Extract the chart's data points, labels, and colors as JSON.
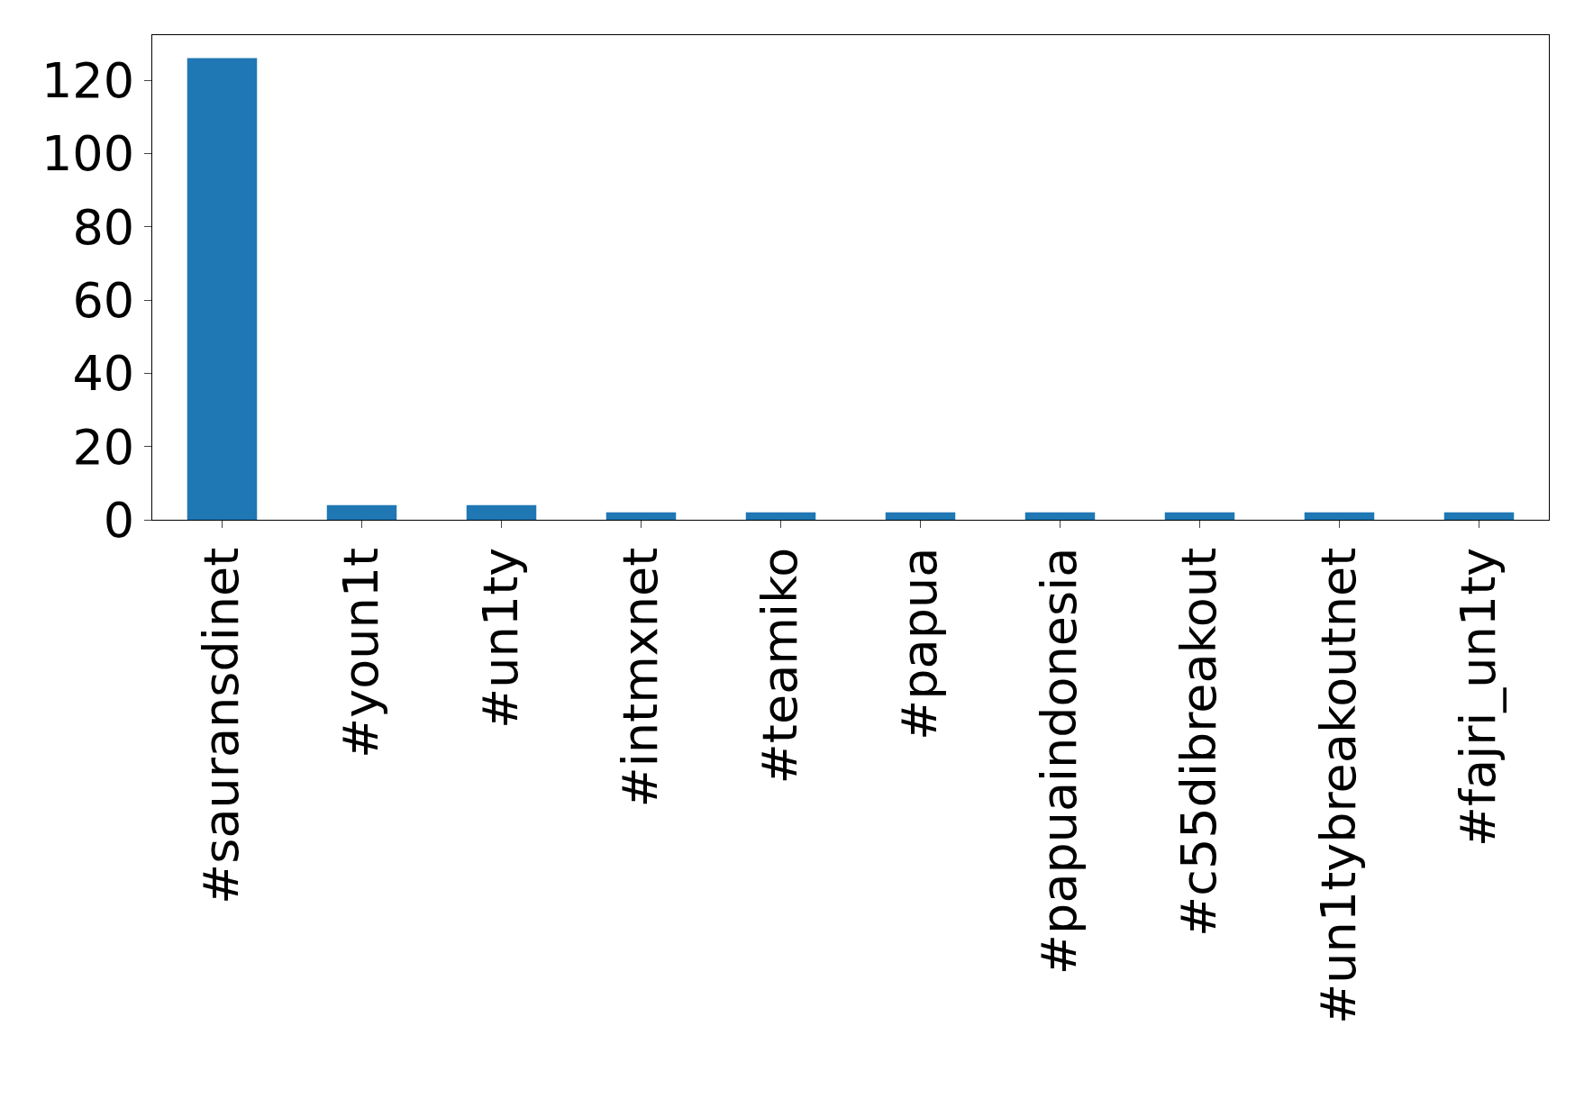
{
  "chart_data": {
    "type": "bar",
    "categories": [
      "#sauransdinet",
      "#youn1t",
      "#un1ty",
      "#intmxnet",
      "#teamiko",
      "#papua",
      "#papuaindonesia",
      "#c55dibreakout",
      "#un1tybreakoutnet",
      "#fajri_un1ty"
    ],
    "values": [
      126,
      4,
      4,
      2,
      2,
      2,
      2,
      2,
      2,
      2
    ],
    "color": "#1f77b4",
    "ylim": [
      0,
      132.3
    ],
    "yticks": [
      0,
      20,
      40,
      60,
      80,
      100,
      120
    ],
    "grid": false,
    "legend": false
  }
}
